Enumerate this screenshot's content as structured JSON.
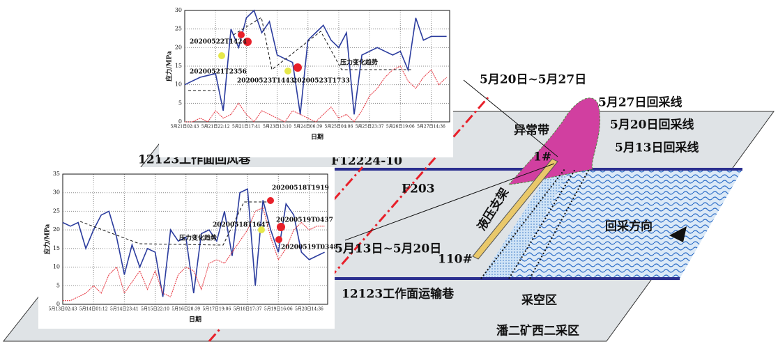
{
  "labels": {
    "period_late": "5月20日~5月27日",
    "line_0527": "5月27日回采线",
    "line_0520": "5月20日回采线",
    "line_0513": "5月13日回采线",
    "anomaly": "异常带",
    "support_1": "1#",
    "fault_1": "F12224-10",
    "return_roadway": "12123工作面回风巷",
    "fault_2": "F203",
    "hydraulic_support": "液压支架",
    "mining_direction": "回采方向",
    "period_early": "5月13日~5月20日",
    "support_110": "110#",
    "haulage_roadway": "12123工作面运输巷",
    "goaf": "采空区",
    "district": "潘二矿西二采区"
  },
  "chart_data": [
    {
      "type": "line",
      "y_label": "应力/MPa",
      "x_label": "日期",
      "xlim": [
        0,
        8.6
      ],
      "ylim": [
        0,
        30
      ],
      "yticks": [
        0,
        5,
        10,
        15,
        20,
        25,
        30
      ],
      "xticks": [
        {
          "value": 0,
          "label": "5月21日02:43"
        },
        {
          "value": 1,
          "label": "5月21日22:12"
        },
        {
          "value": 2,
          "label": "5月21日17:41"
        },
        {
          "value": 3,
          "label": "5月23日13:10"
        },
        {
          "value": 4,
          "label": "5月24日06:39"
        },
        {
          "value": 5,
          "label": "5月25日04:06"
        },
        {
          "value": 6,
          "label": "5月25日23:37"
        },
        {
          "value": 7,
          "label": "5月26日19:06"
        },
        {
          "value": 8,
          "label": "5月27日14:36"
        }
      ],
      "x": [
        0,
        0.25,
        0.5,
        0.75,
        1,
        1.25,
        1.5,
        1.75,
        2,
        2.25,
        2.5,
        2.75,
        3,
        3.25,
        3.5,
        3.75,
        4,
        4.25,
        4.5,
        4.75,
        5,
        5.25,
        5.5,
        5.75,
        6,
        6.25,
        6.5,
        6.75,
        7,
        7.25,
        7.5,
        7.75,
        8,
        8.25,
        8.5
      ],
      "series": [
        {
          "color": "#2b3c9e",
          "values": [
            10,
            11,
            12,
            12.5,
            13,
            3,
            25,
            20,
            28,
            30,
            24,
            27,
            18,
            17,
            16,
            2,
            22,
            24,
            26,
            22,
            20,
            24,
            2,
            18,
            19,
            20,
            19,
            18,
            19,
            14,
            28,
            22,
            23,
            23,
            23
          ]
        },
        {
          "color": "#e8404a",
          "values": [
            0,
            0,
            1,
            0,
            3,
            1,
            2,
            5,
            2,
            0,
            3,
            2,
            1,
            0,
            3,
            2,
            1,
            0,
            2,
            4,
            1,
            2,
            0,
            3,
            7,
            9,
            12,
            14,
            15,
            11,
            9,
            12,
            14,
            10,
            12
          ]
        }
      ],
      "annotations": [
        "20200522T1424",
        "20200521T2356",
        "20200523T1443",
        "20200523T1733",
        "压力变化趋势"
      ]
    },
    {
      "type": "line",
      "y_label": "应力/MPa",
      "x_label": "日期",
      "xlim": [
        0,
        8.6
      ],
      "ylim": [
        0,
        35
      ],
      "yticks": [
        0,
        5,
        10,
        15,
        20,
        25,
        30,
        35
      ],
      "xticks": [
        {
          "value": 0,
          "label": "5月13日02:43"
        },
        {
          "value": 1,
          "label": "5月14日01:12"
        },
        {
          "value": 2,
          "label": "5月14日23:41"
        },
        {
          "value": 3,
          "label": "5月15日22:10"
        },
        {
          "value": 4,
          "label": "5月16日20:39"
        },
        {
          "value": 5,
          "label": "5月17日19:06"
        },
        {
          "value": 6,
          "label": "5月18日17:37"
        },
        {
          "value": 7,
          "label": "5月19日16:06"
        },
        {
          "value": 8,
          "label": "5月20日14:36"
        }
      ],
      "x": [
        0,
        0.25,
        0.5,
        0.75,
        1,
        1.25,
        1.5,
        1.75,
        2,
        2.25,
        2.5,
        2.75,
        3,
        3.25,
        3.5,
        3.75,
        4,
        4.25,
        4.5,
        4.75,
        5,
        5.25,
        5.5,
        5.75,
        6,
        6.25,
        6.5,
        6.75,
        7,
        7.25,
        7.5,
        7.75,
        8,
        8.25,
        8.5
      ],
      "series": [
        {
          "color": "#2b3c9e",
          "values": [
            22,
            21,
            22,
            15,
            20,
            24,
            25,
            18,
            8,
            16,
            10,
            15,
            14,
            2,
            20,
            17,
            18,
            3,
            19,
            20,
            17,
            25,
            13,
            30,
            31,
            5,
            28,
            20,
            14,
            27,
            24,
            14,
            12,
            13,
            14
          ]
        },
        {
          "color": "#e8404a",
          "values": [
            1,
            1,
            2,
            3,
            5,
            3,
            8,
            10,
            3,
            6,
            9,
            4,
            9,
            3,
            2,
            8,
            10,
            9,
            4,
            11,
            12,
            11,
            14,
            17,
            20,
            25,
            26,
            18,
            12,
            15,
            20,
            22,
            20,
            21,
            21
          ]
        }
      ],
      "annotations": [
        "20200518T1919",
        "20200518T1647",
        "20200519T0437",
        "20200519T0348",
        "压力变化趋势"
      ]
    }
  ]
}
